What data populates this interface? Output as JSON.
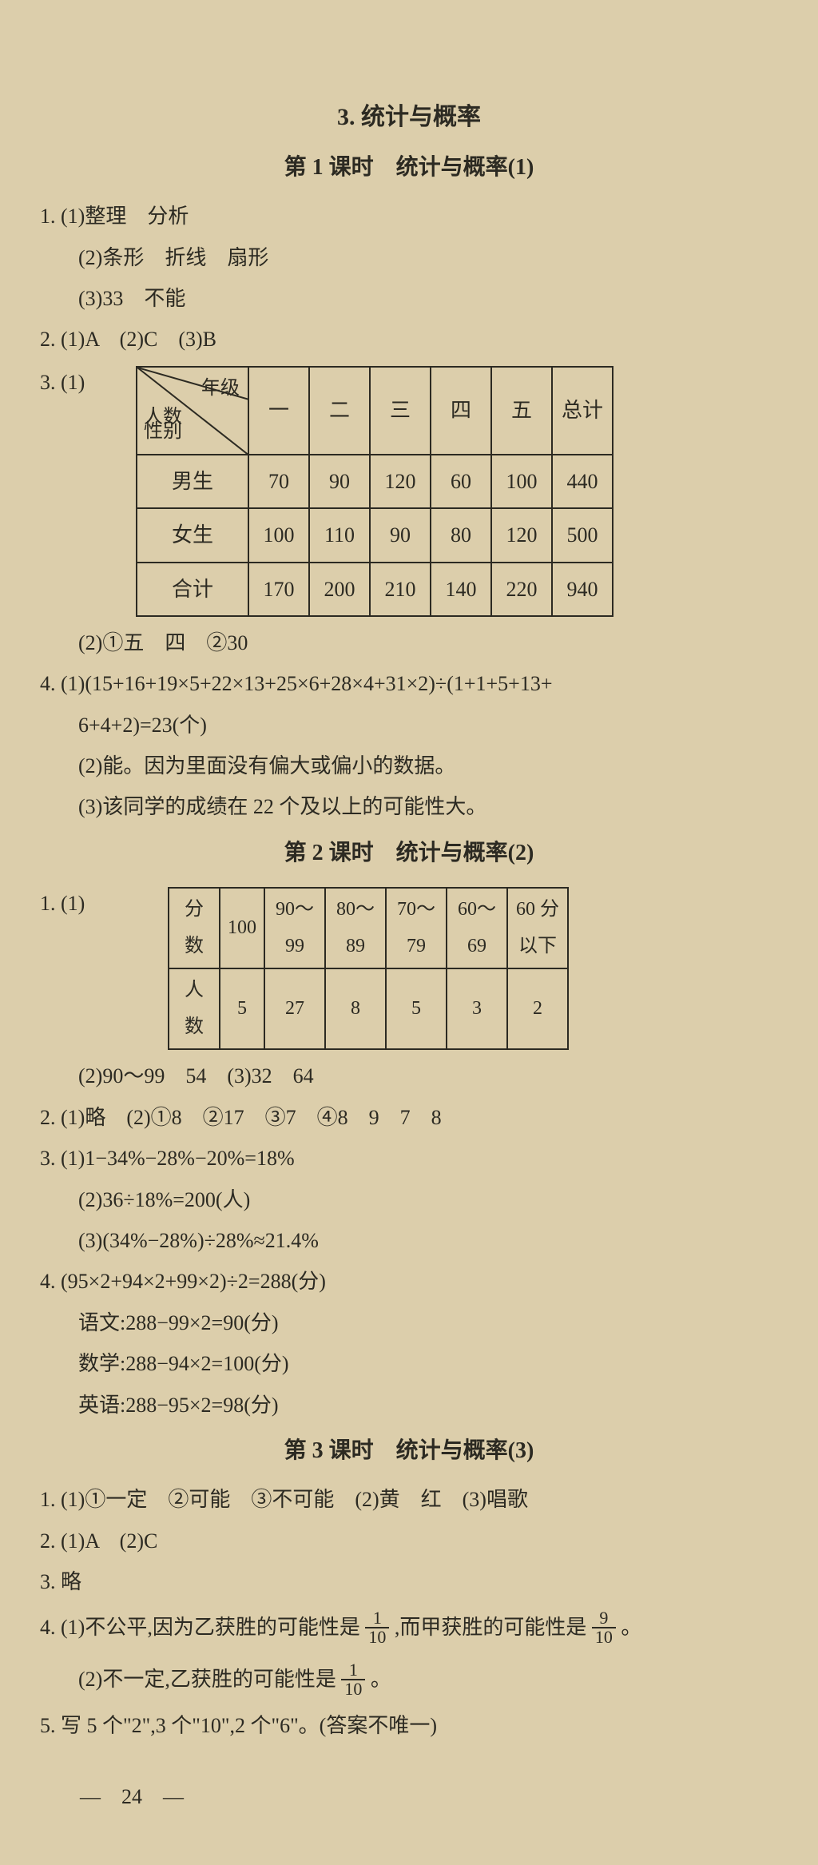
{
  "page": {
    "section_title": "3. 统计与概率",
    "lesson1_title": "第 1 课时　统计与概率(1)",
    "lesson2_title": "第 2 课时　统计与概率(2)",
    "lesson3_title": "第 3 课时　统计与概率(3)",
    "page_number": "—　24　—"
  },
  "lesson1": {
    "q1_1": "1. (1)整理　分析",
    "q1_2": "(2)条形　折线　扇形",
    "q1_3": "(3)33　不能",
    "q2": "2. (1)A　(2)C　(3)B",
    "q3_label": "3. (1)",
    "table1_diag_top": "年级",
    "table1_diag_mid": "人数",
    "table1_diag_bot": "性别",
    "table1_headers": [
      "一",
      "二",
      "三",
      "四",
      "五",
      "总计"
    ],
    "table1_rows": [
      {
        "label": "男生",
        "cells": [
          "70",
          "90",
          "120",
          "60",
          "100",
          "440"
        ]
      },
      {
        "label": "女生",
        "cells": [
          "100",
          "110",
          "90",
          "80",
          "120",
          "500"
        ]
      },
      {
        "label": "合计",
        "cells": [
          "170",
          "200",
          "210",
          "140",
          "220",
          "940"
        ]
      }
    ],
    "q3_2": "(2)①五　四　②30",
    "q4_1a": "4. (1)(15+16+19×5+22×13+25×6+28×4+31×2)÷(1+1+5+13+",
    "q4_1b": "6+4+2)=23(个)",
    "q4_2": "(2)能。因为里面没有偏大或偏小的数据。",
    "q4_3": "(3)该同学的成绩在 22 个及以上的可能性大。"
  },
  "lesson2": {
    "q1_label": "1. (1)",
    "table2_r1": [
      "分数",
      "100",
      "90～99",
      "80～89",
      "70～79",
      "60～69",
      "60 分以下"
    ],
    "table2_r2": [
      "人数",
      "5",
      "27",
      "8",
      "5",
      "3",
      "2"
    ],
    "q1_2": "(2)90～99　54　(3)32　64",
    "q2": "2. (1)略　(2)①8　②17　③7　④8　9　7　8",
    "q3_1": "3. (1)1−34%−28%−20%=18%",
    "q3_2": "(2)36÷18%=200(人)",
    "q3_3": "(3)(34%−28%)÷28%≈21.4%",
    "q4_1": "4. (95×2+94×2+99×2)÷2=288(分)",
    "q4_2": "语文:288−99×2=90(分)",
    "q4_3": "数学:288−94×2=100(分)",
    "q4_4": "英语:288−95×2=98(分)"
  },
  "lesson3": {
    "q1": "1. (1)①一定　②可能　③不可能　(2)黄　红　(3)唱歌",
    "q2": "2. (1)A　(2)C",
    "q3": "3. 略",
    "q4_1_pre": "4. (1)不公平,因为乙获胜的可能性是",
    "q4_1_f1_num": "1",
    "q4_1_f1_den": "10",
    "q4_1_mid": ",而甲获胜的可能性是",
    "q4_1_f2_num": "9",
    "q4_1_f2_den": "10",
    "q4_1_end": "。",
    "q4_2_pre": "(2)不一定,乙获胜的可能性是",
    "q4_2_f_num": "1",
    "q4_2_f_den": "10",
    "q4_2_end": "。",
    "q5": "5. 写 5 个\"2\",3 个\"10\",2 个\"6\"。(答案不唯一)"
  },
  "style": {
    "bg": "#dcceab",
    "fg": "#2c2a22",
    "body_fontsize": 26,
    "title_fontsize": 30,
    "sub_fontsize": 28,
    "table_border": "#2c2a22",
    "table1_col_widths": [
      140,
      76,
      76,
      76,
      76,
      76,
      76
    ],
    "table2_col_widths": [
      64,
      56,
      76,
      76,
      76,
      76,
      76
    ]
  }
}
